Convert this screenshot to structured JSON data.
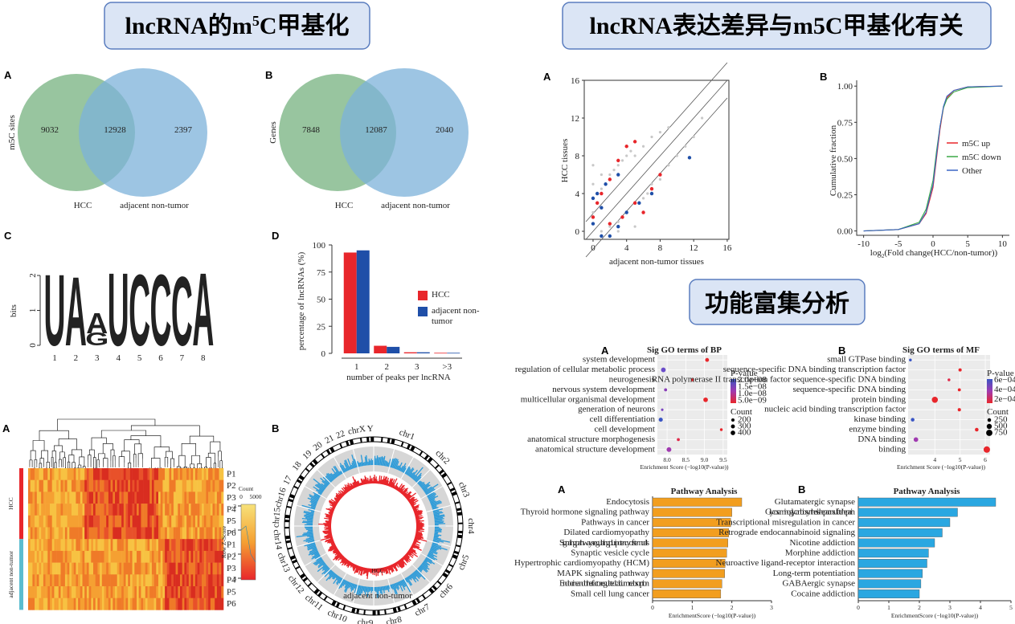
{
  "header_left": {
    "pre": "lncRNA的m",
    "sup": "5",
    "post": "C甲基化"
  },
  "header_right": "lncRNA表达差异与m5C甲基化有关",
  "header_func": "功能富集分析",
  "venns": [
    {
      "label": "A",
      "axis_label": "m5C sites",
      "values": [
        9032,
        12928,
        2397
      ],
      "sets": [
        "HCC",
        "adjacent non-tumor"
      ]
    },
    {
      "label": "B",
      "axis_label": "Genes",
      "values": [
        7848,
        12087,
        2040
      ],
      "sets": [
        "HCC",
        "adjacent non-tumor"
      ]
    }
  ],
  "logo": {
    "label": "C",
    "axis_label": "bits",
    "ylim": [
      0,
      2
    ],
    "yticks": [
      0,
      1,
      2
    ],
    "positions": [
      "1",
      "2",
      "3",
      "4",
      "5",
      "6",
      "7",
      "8"
    ],
    "letters": [
      [
        {
          "letter": "U",
          "height": 1.9,
          "color": "#2e8b3e"
        }
      ],
      [
        {
          "letter": "A",
          "height": 1.85,
          "color": "#d62728"
        }
      ],
      [
        {
          "letter": "G",
          "height": 0.35,
          "color": "#f0a020"
        },
        {
          "letter": "A",
          "height": 0.55,
          "color": "#d62728"
        }
      ],
      [
        {
          "letter": "U",
          "height": 1.95,
          "color": "#2e8b3e"
        }
      ],
      [
        {
          "letter": "C",
          "height": 1.9,
          "color": "#1f4fa8"
        }
      ],
      [
        {
          "letter": "C",
          "height": 1.9,
          "color": "#1f4fa8"
        }
      ],
      [
        {
          "letter": "C",
          "height": 1.85,
          "color": "#1f4fa8"
        }
      ],
      [
        {
          "letter": "A",
          "height": 1.95,
          "color": "#d62728"
        }
      ]
    ]
  },
  "peaks_chart": {
    "type": "bar",
    "label": "D",
    "ylabel": "percentage of lncRNAs (%)",
    "xlabel": "number of peaks per lncRNA",
    "categories": [
      "1",
      "2",
      "3",
      ">3"
    ],
    "ylim": [
      0,
      100
    ],
    "yticks": [
      0,
      25,
      50,
      75,
      100
    ],
    "series": [
      {
        "name": "HCC",
        "color": "#e8262b",
        "values": [
          93,
          7,
          1,
          0.5
        ]
      },
      {
        "name": "adjacent non-tumor",
        "color": "#1f4fa8",
        "values": [
          95,
          6,
          1,
          0.5
        ]
      }
    ]
  },
  "heatmap": {
    "label": "A",
    "groups": [
      {
        "name": "HCC",
        "color": "#e8262b",
        "rows": [
          "P1",
          "P2",
          "P3",
          "P4",
          "P5",
          "P6"
        ]
      },
      {
        "name": "adjacent non-tumor",
        "color": "#5bbccf",
        "rows": [
          "P1",
          "P2",
          "P3",
          "P4",
          "P5",
          "P6"
        ]
      }
    ],
    "key_title": "Count",
    "count_ticks": [
      0,
      5000
    ],
    "z_label": "Row Z-Score",
    "z_ticks": [
      -3,
      -1,
      1,
      3
    ]
  },
  "circos": {
    "label": "B",
    "chromosomes": [
      "chr1",
      "chr2",
      "chr3",
      "chr4",
      "chr5",
      "chr6",
      "chr7",
      "chr8",
      "chr9",
      "chr10",
      "chr11",
      "chr12",
      "chr13",
      "chr14",
      "chr15",
      "chr16",
      "17",
      "18",
      "19",
      "20",
      "21",
      "22",
      "chrX",
      "Y"
    ],
    "inner_label": "HCC",
    "outer_label": "adjacent non-tumor"
  },
  "scatter": {
    "type": "scatter",
    "label": "A",
    "xlabel": "adjacent non-tumor tissues",
    "ylabel": "HCC tissues",
    "xlim": [
      -1.05,
      16.2
    ],
    "ylim": [
      -0.85,
      16
    ],
    "xticks": [
      0,
      4,
      8,
      12,
      16
    ],
    "yticks": [
      0,
      4,
      8,
      12,
      16
    ],
    "series": [
      {
        "color": "#c8c8c8",
        "x": [
          0,
          0.5,
          1,
          1.5,
          2,
          2.5,
          3,
          3.5,
          4,
          4.5,
          5,
          6,
          7,
          8,
          9,
          2,
          3,
          4,
          5,
          6,
          6.5,
          7,
          8,
          9,
          10,
          11,
          12,
          1,
          3,
          5,
          0,
          0,
          1,
          4,
          13
        ],
        "y": [
          2,
          3,
          4.5,
          5,
          6,
          6.5,
          7,
          7.5,
          8,
          8.5,
          8,
          9,
          10,
          10.5,
          11,
          0.5,
          1,
          2,
          3,
          3.5,
          4,
          5,
          5.5,
          7,
          8,
          9,
          10,
          0,
          0,
          0.5,
          5,
          7,
          6,
          9,
          12
        ]
      },
      {
        "color": "#e8262b",
        "x": [
          0,
          0.5,
          1,
          2,
          3,
          4,
          5,
          2,
          3.5,
          5,
          6,
          7,
          8
        ],
        "y": [
          1.5,
          3,
          4,
          5.5,
          7.5,
          9,
          9.5,
          0.8,
          1.5,
          3,
          2,
          4.5,
          6
        ]
      },
      {
        "color": "#1f4fa8",
        "x": [
          0,
          0.5,
          1,
          1.5,
          3,
          11.5,
          3,
          4,
          5.5,
          7,
          1,
          2,
          0
        ],
        "y": [
          3.5,
          4,
          2.5,
          5,
          6,
          7.8,
          0.5,
          2,
          3,
          4,
          -0.5,
          -0.5,
          0.8
        ]
      }
    ]
  },
  "cdf": {
    "type": "line",
    "label": "B",
    "ylabel": "Cumulative fraction",
    "xlabel": {
      "pre": "log",
      "sub": "2",
      "post": "(Fold change(HCC/non-tumor))"
    },
    "xlim": [
      -11,
      11
    ],
    "ylim": [
      -0.03,
      1.04
    ],
    "xticks": [
      -10,
      -5,
      0,
      5,
      10
    ],
    "yticks": [
      {
        "value": 0,
        "label": "0.00"
      },
      {
        "value": 0.25,
        "label": "0.25"
      },
      {
        "value": 0.5,
        "label": "0.50"
      },
      {
        "value": 0.75,
        "label": "0.75"
      },
      {
        "value": 1,
        "label": "1.00"
      }
    ],
    "x": [
      -10,
      -5,
      -2,
      -1,
      0,
      0.5,
      1,
      1.5,
      2,
      3,
      5,
      10
    ],
    "series": [
      {
        "name": "m5C up",
        "color": "#e8262b",
        "values": [
          0,
          0.01,
          0.05,
          0.12,
          0.3,
          0.5,
          0.7,
          0.85,
          0.92,
          0.97,
          0.995,
          1
        ]
      },
      {
        "name": "m5C down",
        "color": "#3aa846",
        "values": [
          0,
          0.01,
          0.06,
          0.15,
          0.35,
          0.55,
          0.72,
          0.85,
          0.91,
          0.96,
          0.99,
          1
        ]
      },
      {
        "name": "Other",
        "color": "#3a66c4",
        "values": [
          0,
          0.01,
          0.05,
          0.13,
          0.32,
          0.52,
          0.72,
          0.86,
          0.93,
          0.97,
          0.995,
          1
        ]
      }
    ]
  },
  "go": [
    {
      "type": "dot",
      "label": "A",
      "title": "Sig GO terms of BP",
      "xlabel": "Enrichment Score (−log10(P-value))",
      "xlim": [
        7.74,
        9.61
      ],
      "xticks": [
        {
          "value": 8,
          "label": "8.0"
        },
        8.5,
        {
          "value": 9,
          "label": "9.0"
        },
        9.5
      ],
      "terms": [
        "system development",
        "regulation of cellular metabolic process",
        "neurogenesis",
        "nervous system development",
        "multicellular organismal development",
        "generation of neurons",
        "cell differentiation",
        "cell development",
        "anatomical structure morphogenesis",
        "anatomical structure development"
      ],
      "values": [
        9.07,
        7.9,
        8.68,
        7.96,
        9.03,
        7.87,
        7.83,
        9.45,
        8.3,
        8.05
      ],
      "counts": [
        280,
        420,
        150,
        180,
        400,
        120,
        320,
        150,
        170,
        430
      ],
      "colors": [
        "#e8262b",
        "#6a4cc9",
        "#e8262b",
        "#8a3fb8",
        "#e8262b",
        "#7a45c0",
        "#3a55c4",
        "#e8262b",
        "#e02a4a",
        "#a03ab0"
      ],
      "pvalue_title": "P-value",
      "pvalue_ticks": [
        "2.0e−08",
        "1.5e−08",
        "1.0e−08",
        "5.0e−09"
      ],
      "count_title": "Count",
      "count_ticks": [
        200,
        300,
        400
      ]
    },
    {
      "type": "dot",
      "label": "B",
      "title": "Sig GO terms of MF",
      "xlabel": "Enrichment Score (−log10(P-value))",
      "xlim": [
        2.94,
        6.19
      ],
      "xticks": [
        4,
        5,
        6
      ],
      "terms": [
        "small GTPase binding",
        "sequence-specific DNA binding transcription factor",
        "RNA polymerase II transcription factor sequence-specific DNA binding",
        "sequence-specific DNA binding",
        "protein binding",
        "nucleic acid binding transcription factor",
        "kinase binding",
        "enzyme binding",
        "DNA binding",
        "binding"
      ],
      "values": [
        3.03,
        5.0,
        4.56,
        4.97,
        4.0,
        4.97,
        3.12,
        5.66,
        3.25,
        6.06
      ],
      "counts": [
        150,
        200,
        150,
        180,
        700,
        200,
        250,
        250,
        400,
        780
      ],
      "colors": [
        "#3a55c4",
        "#e8262b",
        "#e02a4a",
        "#e8262b",
        "#e8262b",
        "#e8262b",
        "#3a55c4",
        "#e8262b",
        "#a03ab0",
        "#e8262b"
      ],
      "pvalue_title": "P-value",
      "pvalue_ticks": [
        "6e−04",
        "4e−04",
        "2e−04"
      ],
      "count_title": "Count",
      "count_ticks": [
        250,
        500,
        750
      ]
    }
  ],
  "pathways": [
    {
      "type": "hbar",
      "label": "A",
      "title": "Pathway Analysis",
      "xlabel": "EnrichmentScore (−log10(P-value))",
      "color": "#f29e1f",
      "xlim": [
        0,
        3
      ],
      "xticks": [
        0,
        1,
        2,
        3
      ],
      "categories": [
        "Endocytosis",
        "Thyroid hormone signaling pathway",
        "Pathways in cancer",
        "Dilated cardiomyopathy",
        "Signaling pathways regulating pluripotency of stem cells",
        "Synaptic vesicle cycle",
        "Hypertrophic cardiomyopathy (HCM)",
        "MAPK signaling pathway",
        "Endocrine and other factor-regulated calcium reabsorption",
        "Small cell lung cancer"
      ],
      "values": [
        2.25,
        2.0,
        1.97,
        1.92,
        1.9,
        1.87,
        1.83,
        1.82,
        1.75,
        1.72
      ]
    },
    {
      "type": "hbar",
      "label": "B",
      "title": "Pathway Analysis",
      "xlabel": "EnrichmentScore (−log10(P-value))",
      "color": "#2aa7e1",
      "xlim": [
        0,
        5
      ],
      "xticks": [
        0,
        1,
        2,
        3,
        4,
        5
      ],
      "categories": [
        "Glutamatergic synapse",
        "Glycosaminoglycan biosynthesis-heparan sulfate / heparin",
        "Transcriptional misregulation in cancer",
        "Retrograde endocannabinoid signaling",
        "Nicotine addiction",
        "Morphine addiction",
        "Neuroactive ligand-receptor interaction",
        "Long-term potentiation",
        "GABAergic synapse",
        "Cocaine addiction"
      ],
      "values": [
        4.5,
        3.25,
        3.0,
        2.75,
        2.5,
        2.3,
        2.25,
        2.1,
        2.05,
        2.0
      ]
    }
  ]
}
